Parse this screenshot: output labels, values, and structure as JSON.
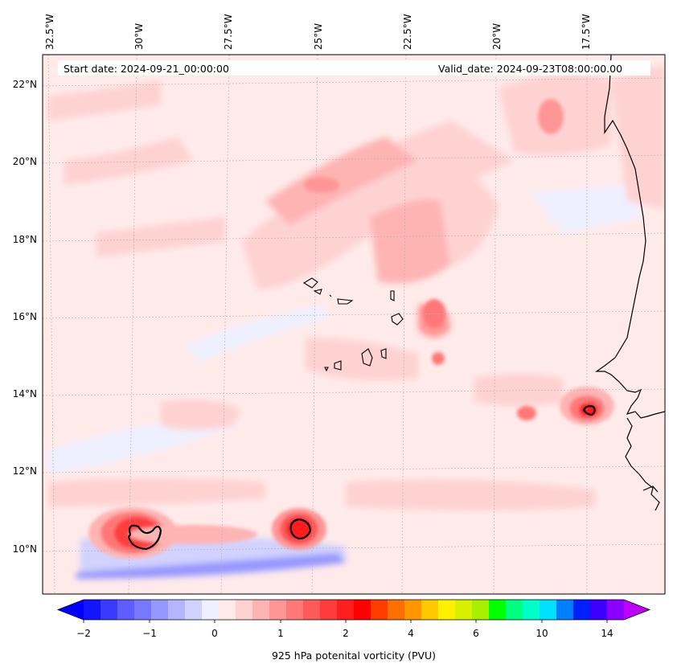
{
  "header": {
    "start_date": "Start date: 2024-09-21_00:00:00",
    "valid_date": "Valid_date: 2024-09-23T08:00:00.00"
  },
  "axes": {
    "longitude_labels": [
      "32.5°W",
      "30°W",
      "27.5°W",
      "25°W",
      "22.5°W",
      "20°W",
      "17.5°W"
    ],
    "latitude_labels": [
      "22°N",
      "20°N",
      "18°N",
      "16°N",
      "14°N",
      "12°N",
      "10°N"
    ]
  },
  "colorbar": {
    "label": "925 hPa potenital vorticity (PVU)",
    "tick_labels": [
      "−2",
      "−1",
      "0",
      "1",
      "2",
      "4",
      "6",
      "10",
      "14"
    ],
    "colors": [
      "#1414ff",
      "#3a3aff",
      "#5c5cff",
      "#7878ff",
      "#9696ff",
      "#b4b4ff",
      "#d2d2ff",
      "#eef0ff",
      "#ffeaea",
      "#ffd2d2",
      "#ffb4b4",
      "#ff9696",
      "#ff7878",
      "#ff5a5a",
      "#ff3c3c",
      "#ff1e1e",
      "#ff0000",
      "#ff3c00",
      "#ff6e00",
      "#ff9600",
      "#ffc800",
      "#fff000",
      "#d8f000",
      "#a8f000",
      "#00ff00",
      "#00ff80",
      "#00ffc8",
      "#00e0ff",
      "#0080ff",
      "#0020ff",
      "#3c00ff",
      "#8c00ff"
    ],
    "under_color": "#0000ff",
    "over_color": "#c000ff"
  }
}
